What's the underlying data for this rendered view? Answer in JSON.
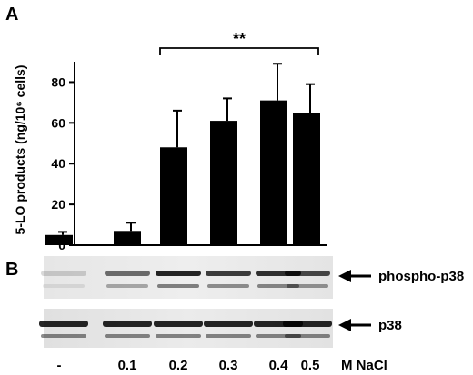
{
  "panels": {
    "a_label": "A",
    "b_label": "B"
  },
  "chart_data": {
    "type": "bar",
    "categories": [
      "-",
      "0.1",
      "0.2",
      "0.3",
      "0.4",
      "0.5"
    ],
    "values": [
      5,
      7,
      48,
      61,
      71,
      65
    ],
    "errors": [
      1.5,
      4,
      18,
      11,
      18,
      14
    ],
    "title": "",
    "xlabel": "",
    "ylabel": "5-LO products (ng/10⁶ cells)",
    "ylim": [
      0,
      90
    ],
    "yticks": [
      0,
      20,
      40,
      60,
      80
    ],
    "x_tick_labels_shown": [
      "-"
    ],
    "grid": false,
    "legend": "none",
    "bar_color": "#000000",
    "annotation": {
      "text": "**",
      "from_category": "0.2",
      "to_category": "0.5"
    }
  },
  "blots": [
    {
      "label": "phospho-p38",
      "arrow": "left-arrow"
    },
    {
      "label": "p38",
      "arrow": "left-arrow"
    }
  ],
  "lane_labels": [
    "-",
    "0.1",
    "0.2",
    "0.3",
    "0.4",
    "0.5"
  ],
  "unit_label": "M NaCl"
}
